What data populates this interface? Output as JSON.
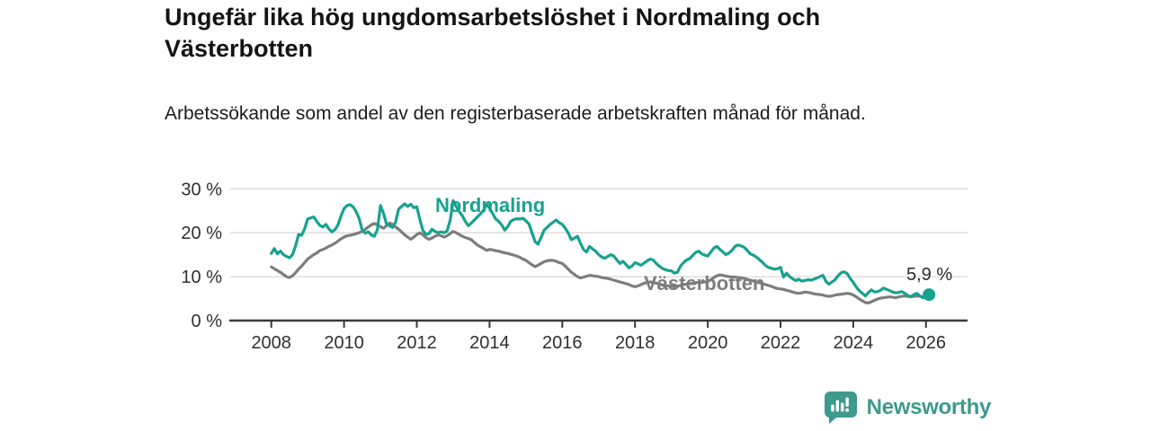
{
  "header": {
    "title": "Ungefär lika hög ungdomsarbetslöshet i Nordmaling och Västerbotten",
    "subtitle": "Arbetssökande som andel av den registerbaserade arbetskraften månad för månad."
  },
  "footer": {
    "brand": "Newsworthy",
    "brand_color": "#3d9a8c",
    "logo_icon": "bar-chart-speech-bubble"
  },
  "chart_data": {
    "type": "line",
    "title": "Ungefär lika hög ungdomsarbetslöshet i Nordmaling och Västerbotten",
    "subtitle": "Arbetssökande som andel av den registerbaserade arbetskraften månad för månad.",
    "unit": "%",
    "grid": "horizontal-only",
    "legend_position": "inline-labels",
    "x_axis": {
      "range": [
        2007.85,
        2027.15
      ],
      "ticks": [
        2008,
        2010,
        2012,
        2014,
        2016,
        2018,
        2020,
        2022,
        2024,
        2026
      ],
      "tick_labels": [
        "2008",
        "2010",
        "2012",
        "2014",
        "2016",
        "2018",
        "2020",
        "2022",
        "2024",
        "2026"
      ]
    },
    "y_axis": {
      "range": [
        0,
        30
      ],
      "ticks": [
        0,
        10,
        20,
        30
      ],
      "tick_labels": [
        "0 %",
        "10 %",
        "20 %",
        "30 %"
      ]
    },
    "end_label": "5,9 %",
    "end_value": 5.9,
    "colors": {
      "nordmaling": "#17a28e",
      "vasterbotten": "#7d7d7d",
      "grid": "#d9d9d9",
      "axis": "#3a3a3a",
      "tick_text": "#2f2f2f"
    },
    "series": [
      {
        "name": "Västerbotten",
        "color": "#7d7d7d",
        "start_year": 2008,
        "points_per_year": 12,
        "values": [
          12.2,
          11.8,
          11.4,
          11.0,
          10.5,
          10.0,
          9.8,
          10.2,
          10.9,
          11.7,
          12.4,
          13.2,
          14.0,
          14.5,
          15.0,
          15.4,
          15.9,
          16.2,
          16.5,
          16.9,
          17.2,
          17.6,
          18.1,
          18.6,
          19.0,
          19.3,
          19.4,
          19.6,
          19.8,
          20.0,
          20.3,
          20.8,
          21.3,
          21.8,
          22.1,
          21.8,
          21.4,
          21.0,
          21.6,
          22.2,
          21.9,
          21.3,
          20.8,
          20.2,
          19.5,
          19.0,
          18.5,
          19.0,
          19.6,
          20.0,
          19.5,
          18.9,
          18.5,
          18.8,
          19.2,
          19.5,
          19.3,
          19.0,
          19.3,
          19.8,
          20.3,
          20.0,
          19.6,
          19.2,
          18.9,
          18.7,
          18.4,
          17.8,
          17.2,
          16.8,
          16.4,
          16.0,
          16.2,
          16.1,
          15.9,
          15.8,
          15.6,
          15.4,
          15.3,
          15.1,
          14.9,
          14.7,
          14.4,
          14.0,
          13.7,
          13.2,
          12.7,
          12.3,
          12.6,
          13.0,
          13.4,
          13.6,
          13.7,
          13.7,
          13.5,
          13.2,
          13.0,
          12.4,
          11.7,
          11.0,
          10.5,
          10.0,
          9.7,
          9.9,
          10.1,
          10.3,
          10.2,
          10.1,
          10.0,
          9.8,
          9.7,
          9.6,
          9.4,
          9.2,
          9.0,
          8.8,
          8.6,
          8.4,
          8.2,
          7.9,
          7.7,
          7.9,
          8.2,
          8.5,
          8.7,
          8.8,
          8.7,
          8.5,
          8.3,
          8.1,
          8.0,
          7.9,
          7.8,
          7.7,
          7.8,
          8.0,
          8.2,
          8.3,
          8.4,
          8.5,
          8.6,
          8.7,
          8.7,
          8.8,
          8.9,
          9.3,
          9.8,
          10.2,
          10.4,
          10.3,
          10.1,
          10.0,
          9.9,
          9.9,
          9.8,
          9.7,
          9.6,
          9.4,
          9.2,
          9.0,
          8.8,
          8.6,
          8.4,
          8.2,
          8.0,
          7.8,
          7.5,
          7.3,
          7.2,
          7.1,
          6.9,
          6.7,
          6.5,
          6.3,
          6.2,
          6.3,
          6.5,
          6.4,
          6.3,
          6.1,
          6.0,
          5.9,
          5.8,
          5.6,
          5.5,
          5.6,
          5.8,
          5.9,
          6.0,
          6.1,
          6.2,
          6.1,
          5.8,
          5.4,
          4.9,
          4.5,
          4.1,
          4.0,
          4.3,
          4.6,
          4.9,
          5.1,
          5.2,
          5.3,
          5.4,
          5.3,
          5.2,
          5.4,
          5.5,
          5.6,
          5.5,
          5.4,
          5.5,
          5.6,
          5.5,
          5.4,
          5.5
        ]
      },
      {
        "name": "Nordmaling",
        "color": "#17a28e",
        "start_year": 2008,
        "points_per_year": 12,
        "values": [
          15.3,
          16.4,
          15.2,
          15.8,
          15.0,
          14.6,
          14.3,
          15.0,
          17.0,
          19.6,
          19.4,
          20.9,
          23.1,
          23.4,
          23.6,
          22.6,
          21.7,
          21.3,
          21.9,
          20.9,
          20.2,
          20.7,
          21.8,
          23.8,
          25.5,
          26.2,
          26.4,
          25.9,
          24.8,
          23.2,
          20.6,
          19.9,
          20.2,
          19.5,
          19.2,
          20.7,
          26.2,
          24.5,
          22.0,
          21.6,
          21.2,
          22.4,
          25.4,
          26.0,
          26.6,
          26.0,
          26.5,
          25.7,
          25.9,
          23.0,
          20.6,
          19.6,
          19.8,
          20.8,
          20.3,
          20.0,
          20.2,
          20.0,
          20.4,
          22.8,
          27.3,
          26.0,
          24.8,
          23.9,
          22.6,
          21.6,
          22.2,
          22.9,
          23.6,
          24.3,
          25.1,
          26.5,
          25.6,
          24.4,
          23.2,
          22.6,
          21.8,
          20.6,
          21.4,
          22.6,
          23.0,
          23.2,
          23.1,
          23.3,
          22.7,
          22.0,
          20.0,
          18.0,
          17.4,
          18.9,
          20.6,
          21.2,
          21.9,
          22.4,
          22.9,
          22.3,
          21.9,
          21.0,
          19.9,
          18.4,
          18.8,
          19.2,
          17.6,
          16.2,
          15.6,
          16.9,
          16.3,
          15.8,
          15.0,
          14.5,
          14.2,
          14.6,
          15.0,
          14.7,
          13.8,
          13.0,
          13.5,
          12.8,
          12.0,
          12.4,
          13.2,
          12.9,
          12.6,
          13.1,
          13.6,
          14.0,
          13.8,
          13.0,
          12.4,
          11.9,
          11.6,
          11.4,
          11.3,
          10.8,
          11.0,
          12.4,
          13.2,
          13.8,
          14.1,
          14.8,
          15.5,
          15.8,
          15.2,
          14.9,
          14.7,
          15.6,
          16.5,
          16.9,
          16.2,
          15.6,
          15.0,
          15.4,
          16.0,
          16.9,
          17.2,
          17.0,
          16.7,
          16.0,
          15.2,
          14.9,
          14.5,
          13.9,
          13.3,
          12.6,
          12.1,
          11.9,
          11.7,
          11.8,
          12.1,
          9.9,
          10.8,
          10.0,
          9.5,
          9.1,
          9.4,
          9.0,
          9.1,
          9.3,
          9.2,
          9.4,
          9.7,
          10.0,
          10.3,
          8.9,
          8.3,
          8.8,
          9.3,
          10.2,
          10.9,
          11.1,
          10.7,
          9.6,
          8.7,
          7.6,
          6.8,
          6.2,
          5.6,
          6.4,
          7.0,
          6.5,
          6.6,
          6.9,
          7.4,
          7.1,
          6.8,
          6.5,
          6.3,
          6.4,
          6.6,
          6.2,
          5.7,
          5.4,
          5.9,
          6.2,
          5.6,
          5.2,
          5.6,
          5.9
        ]
      }
    ]
  }
}
